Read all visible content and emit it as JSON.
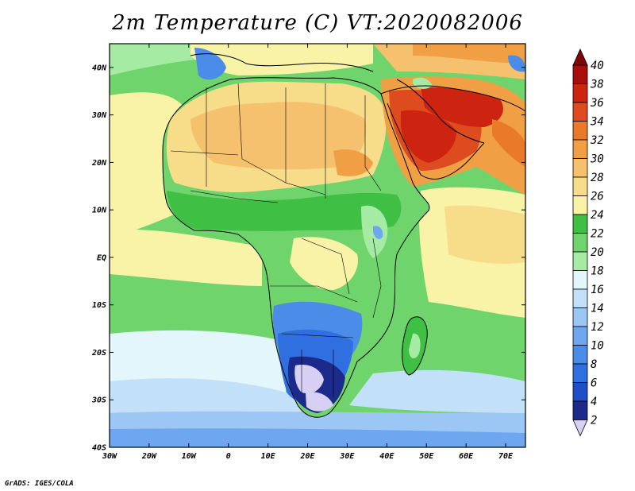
{
  "title": "2m Temperature (C) VT:2020082006",
  "credit": "GrADS: IGES/COLA",
  "map": {
    "region": "Africa and Middle East",
    "variable": "2m Temperature",
    "units": "C",
    "valid_time": "2020082006",
    "lon_range": [
      -30,
      75
    ],
    "lat_range": [
      -40,
      45
    ],
    "lon_ticks": [
      {
        "value": -30,
        "label": "30W"
      },
      {
        "value": -20,
        "label": "20W"
      },
      {
        "value": -10,
        "label": "10W"
      },
      {
        "value": 0,
        "label": "0"
      },
      {
        "value": 10,
        "label": "10E"
      },
      {
        "value": 20,
        "label": "20E"
      },
      {
        "value": 30,
        "label": "30E"
      },
      {
        "value": 40,
        "label": "40E"
      },
      {
        "value": 50,
        "label": "50E"
      },
      {
        "value": 60,
        "label": "60E"
      },
      {
        "value": 70,
        "label": "70E"
      }
    ],
    "lat_ticks": [
      {
        "value": 40,
        "label": "40N"
      },
      {
        "value": 30,
        "label": "30N"
      },
      {
        "value": 20,
        "label": "20N"
      },
      {
        "value": 10,
        "label": "10N"
      },
      {
        "value": 0,
        "label": "EQ"
      },
      {
        "value": -10,
        "label": "10S"
      },
      {
        "value": -20,
        "label": "20S"
      },
      {
        "value": -30,
        "label": "30S"
      },
      {
        "value": -40,
        "label": "40S"
      }
    ]
  },
  "colorbar": {
    "levels": [
      "2",
      "4",
      "6",
      "8",
      "10",
      "12",
      "14",
      "16",
      "18",
      "20",
      "22",
      "24",
      "26",
      "28",
      "30",
      "32",
      "34",
      "36",
      "38",
      "40"
    ],
    "colors": [
      "#d8d0f4",
      "#1c2a8c",
      "#1f4fc8",
      "#2f6fe0",
      "#4a8ce8",
      "#6ea6ef",
      "#9cc6f4",
      "#c2e0f8",
      "#e2f6fb",
      "#a6eba3",
      "#6fd46c",
      "#3fbf43",
      "#f8f3a7",
      "#f7dc8a",
      "#f5c16f",
      "#f09f45",
      "#e97a2a",
      "#de4b1e",
      "#cc2410",
      "#a80f0a",
      "#7e0606"
    ]
  }
}
